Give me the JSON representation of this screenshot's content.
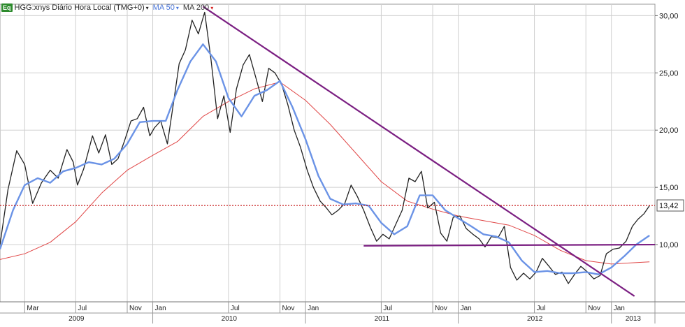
{
  "legend": {
    "badge": "Eq",
    "symbol": "HGG:xnys Diário Hora Local (TMG+0)",
    "ma50_label": "MA 50",
    "ma200_label": "MA 200",
    "caret": "▾"
  },
  "colors": {
    "price": "#222222",
    "ma50": "#6b93e6",
    "ma200": "#e04646",
    "trendline": "#7b1f82",
    "last_price_line": "#c00000",
    "grid": "#cfcfcf"
  },
  "chart_data": {
    "type": "line",
    "title": "HGG:xnys Diário Hora Local (TMG+0)",
    "xlabel": "",
    "ylabel": "",
    "ylim": [
      5.0,
      31.0
    ],
    "y_ticks": [
      "10,00",
      "15,00",
      "20,00",
      "25,00",
      "30,00"
    ],
    "y_tick_values": [
      10,
      15,
      20,
      25,
      30
    ],
    "x_range": [
      "2009-01-01",
      "2013-04-15"
    ],
    "month_ticks": [
      {
        "label": "Mar",
        "date": "2009-03-01"
      },
      {
        "label": "Jul",
        "date": "2009-07-01"
      },
      {
        "label": "Nov",
        "date": "2009-11-01"
      },
      {
        "label": "Jan",
        "date": "2010-01-01"
      },
      {
        "label": "Jul",
        "date": "2010-07-01"
      },
      {
        "label": "Nov",
        "date": "2010-11-01"
      },
      {
        "label": "Jan",
        "date": "2011-01-01"
      },
      {
        "label": "Jul",
        "date": "2011-07-01"
      },
      {
        "label": "Nov",
        "date": "2011-11-01"
      },
      {
        "label": "Jan",
        "date": "2012-01-01"
      },
      {
        "label": "Jul",
        "date": "2012-07-01"
      },
      {
        "label": "Nov",
        "date": "2012-11-01"
      },
      {
        "label": "Jan",
        "date": "2013-01-01"
      }
    ],
    "year_ticks": [
      {
        "label": "2009",
        "date": "2009-01-01"
      },
      {
        "label": "2010",
        "date": "2010-01-01"
      },
      {
        "label": "2011",
        "date": "2011-01-01"
      },
      {
        "label": "2012",
        "date": "2012-01-01"
      },
      {
        "label": "2013",
        "date": "2013-01-01"
      }
    ],
    "last_price": {
      "value": 13.42,
      "label": "13,42"
    },
    "series": [
      {
        "role": "price",
        "points": [
          [
            "2009-01-01",
            10.0
          ],
          [
            "2009-01-20",
            14.8
          ],
          [
            "2009-02-10",
            18.2
          ],
          [
            "2009-03-01",
            17.0
          ],
          [
            "2009-03-20",
            13.6
          ],
          [
            "2009-04-10",
            15.4
          ],
          [
            "2009-05-01",
            16.5
          ],
          [
            "2009-05-20",
            15.8
          ],
          [
            "2009-06-10",
            18.3
          ],
          [
            "2009-06-25",
            17.2
          ],
          [
            "2009-07-05",
            15.2
          ],
          [
            "2009-07-20",
            16.6
          ],
          [
            "2009-08-10",
            19.5
          ],
          [
            "2009-08-25",
            18.0
          ],
          [
            "2009-09-10",
            19.6
          ],
          [
            "2009-09-25",
            17.0
          ],
          [
            "2009-10-10",
            17.5
          ],
          [
            "2009-10-25",
            19.0
          ],
          [
            "2009-11-10",
            20.8
          ],
          [
            "2009-11-25",
            21.0
          ],
          [
            "2009-12-10",
            22.0
          ],
          [
            "2009-12-25",
            19.5
          ],
          [
            "2010-01-05",
            20.2
          ],
          [
            "2010-01-20",
            20.8
          ],
          [
            "2010-02-05",
            18.8
          ],
          [
            "2010-02-20",
            22.5
          ],
          [
            "2010-03-05",
            25.8
          ],
          [
            "2010-03-20",
            27.0
          ],
          [
            "2010-04-05",
            29.6
          ],
          [
            "2010-04-20",
            28.4
          ],
          [
            "2010-05-05",
            30.3
          ],
          [
            "2010-05-20",
            26.2
          ],
          [
            "2010-06-05",
            21.0
          ],
          [
            "2010-06-20",
            23.0
          ],
          [
            "2010-07-05",
            19.8
          ],
          [
            "2010-07-20",
            23.6
          ],
          [
            "2010-08-05",
            25.7
          ],
          [
            "2010-08-20",
            26.6
          ],
          [
            "2010-09-05",
            24.5
          ],
          [
            "2010-09-20",
            22.5
          ],
          [
            "2010-10-05",
            25.4
          ],
          [
            "2010-10-20",
            25.0
          ],
          [
            "2010-11-05",
            24.0
          ],
          [
            "2010-11-20",
            22.2
          ],
          [
            "2010-12-05",
            20.0
          ],
          [
            "2010-12-20",
            18.5
          ],
          [
            "2011-01-05",
            16.5
          ],
          [
            "2011-01-20",
            15.0
          ],
          [
            "2011-02-05",
            13.8
          ],
          [
            "2011-02-20",
            13.2
          ],
          [
            "2011-03-05",
            12.6
          ],
          [
            "2011-03-20",
            13.0
          ],
          [
            "2011-04-05",
            13.6
          ],
          [
            "2011-04-20",
            15.2
          ],
          [
            "2011-05-05",
            14.2
          ],
          [
            "2011-05-20",
            13.0
          ],
          [
            "2011-06-05",
            11.5
          ],
          [
            "2011-06-20",
            10.3
          ],
          [
            "2011-07-05",
            10.9
          ],
          [
            "2011-07-20",
            10.5
          ],
          [
            "2011-08-05",
            11.8
          ],
          [
            "2011-08-20",
            13.0
          ],
          [
            "2011-09-05",
            15.8
          ],
          [
            "2011-09-20",
            15.5
          ],
          [
            "2011-10-05",
            16.4
          ],
          [
            "2011-10-20",
            13.2
          ],
          [
            "2011-11-05",
            13.7
          ],
          [
            "2011-11-20",
            11.0
          ],
          [
            "2011-12-05",
            10.3
          ],
          [
            "2011-12-20",
            12.4
          ],
          [
            "2012-01-05",
            12.5
          ],
          [
            "2012-01-20",
            11.4
          ],
          [
            "2012-02-05",
            10.9
          ],
          [
            "2012-02-20",
            10.5
          ],
          [
            "2012-03-05",
            9.8
          ],
          [
            "2012-03-20",
            10.7
          ],
          [
            "2012-04-05",
            10.6
          ],
          [
            "2012-04-20",
            11.6
          ],
          [
            "2012-05-05",
            8.0
          ],
          [
            "2012-05-20",
            6.9
          ],
          [
            "2012-06-05",
            7.5
          ],
          [
            "2012-06-20",
            7.0
          ],
          [
            "2012-07-05",
            7.6
          ],
          [
            "2012-07-20",
            8.8
          ],
          [
            "2012-08-05",
            8.1
          ],
          [
            "2012-08-20",
            7.4
          ],
          [
            "2012-09-05",
            7.6
          ],
          [
            "2012-09-20",
            6.6
          ],
          [
            "2012-10-05",
            7.4
          ],
          [
            "2012-10-20",
            8.1
          ],
          [
            "2012-11-05",
            7.6
          ],
          [
            "2012-11-20",
            7.0
          ],
          [
            "2012-12-05",
            7.3
          ],
          [
            "2012-12-20",
            9.2
          ],
          [
            "2013-01-05",
            9.6
          ],
          [
            "2013-01-20",
            9.7
          ],
          [
            "2013-02-05",
            10.3
          ],
          [
            "2013-02-20",
            11.6
          ],
          [
            "2013-03-05",
            12.2
          ],
          [
            "2013-03-20",
            12.7
          ],
          [
            "2013-04-02",
            13.4
          ]
        ]
      },
      {
        "role": "ma50",
        "name": "MA 50",
        "points": [
          [
            "2009-01-01",
            9.6
          ],
          [
            "2009-02-01",
            13.0
          ],
          [
            "2009-03-01",
            15.2
          ],
          [
            "2009-04-01",
            15.8
          ],
          [
            "2009-05-01",
            15.4
          ],
          [
            "2009-06-01",
            16.4
          ],
          [
            "2009-07-01",
            16.7
          ],
          [
            "2009-08-01",
            17.2
          ],
          [
            "2009-09-01",
            17.0
          ],
          [
            "2009-10-01",
            17.5
          ],
          [
            "2009-11-01",
            18.8
          ],
          [
            "2009-12-01",
            20.7
          ],
          [
            "2010-01-01",
            20.8
          ],
          [
            "2010-02-01",
            20.8
          ],
          [
            "2010-03-01",
            23.5
          ],
          [
            "2010-04-01",
            26.0
          ],
          [
            "2010-05-01",
            27.5
          ],
          [
            "2010-06-01",
            26.0
          ],
          [
            "2010-07-01",
            22.8
          ],
          [
            "2010-08-01",
            21.2
          ],
          [
            "2010-09-01",
            23.0
          ],
          [
            "2010-10-01",
            23.5
          ],
          [
            "2010-11-01",
            24.3
          ],
          [
            "2010-12-01",
            22.0
          ],
          [
            "2011-01-01",
            19.2
          ],
          [
            "2011-02-01",
            16.0
          ],
          [
            "2011-03-01",
            14.0
          ],
          [
            "2011-04-01",
            13.5
          ],
          [
            "2011-05-01",
            13.6
          ],
          [
            "2011-06-01",
            13.4
          ],
          [
            "2011-07-01",
            11.9
          ],
          [
            "2011-08-01",
            10.9
          ],
          [
            "2011-09-01",
            11.6
          ],
          [
            "2011-10-01",
            14.3
          ],
          [
            "2011-11-01",
            14.3
          ],
          [
            "2011-12-01",
            13.0
          ],
          [
            "2012-01-01",
            12.3
          ],
          [
            "2012-02-01",
            11.6
          ],
          [
            "2012-03-01",
            10.9
          ],
          [
            "2012-04-01",
            10.7
          ],
          [
            "2012-05-01",
            10.2
          ],
          [
            "2012-06-01",
            8.6
          ],
          [
            "2012-07-01",
            7.6
          ],
          [
            "2012-08-01",
            7.7
          ],
          [
            "2012-09-01",
            7.5
          ],
          [
            "2012-10-01",
            7.5
          ],
          [
            "2012-11-01",
            7.6
          ],
          [
            "2012-12-01",
            7.4
          ],
          [
            "2013-01-01",
            8.0
          ],
          [
            "2013-02-01",
            9.0
          ],
          [
            "2013-03-01",
            10.0
          ],
          [
            "2013-04-02",
            10.8
          ]
        ]
      },
      {
        "role": "ma200",
        "name": "MA 200",
        "points": [
          [
            "2009-01-01",
            8.7
          ],
          [
            "2009-03-01",
            9.2
          ],
          [
            "2009-05-01",
            10.2
          ],
          [
            "2009-07-01",
            12.0
          ],
          [
            "2009-09-01",
            14.5
          ],
          [
            "2009-11-01",
            16.5
          ],
          [
            "2010-01-01",
            17.8
          ],
          [
            "2010-03-01",
            19.0
          ],
          [
            "2010-05-01",
            21.2
          ],
          [
            "2010-07-01",
            22.5
          ],
          [
            "2010-09-01",
            23.6
          ],
          [
            "2010-11-01",
            24.2
          ],
          [
            "2011-01-01",
            22.6
          ],
          [
            "2011-03-01",
            20.5
          ],
          [
            "2011-05-01",
            18.0
          ],
          [
            "2011-07-01",
            15.5
          ],
          [
            "2011-09-01",
            13.8
          ],
          [
            "2011-11-01",
            13.1
          ],
          [
            "2012-01-01",
            12.5
          ],
          [
            "2012-03-01",
            12.1
          ],
          [
            "2012-05-01",
            11.7
          ],
          [
            "2012-07-01",
            10.8
          ],
          [
            "2012-09-01",
            9.5
          ],
          [
            "2012-11-01",
            8.6
          ],
          [
            "2013-01-01",
            8.3
          ],
          [
            "2013-04-02",
            8.5
          ]
        ]
      }
    ],
    "trendlines": [
      {
        "role": "downtrend",
        "from": [
          "2010-05-01",
          30.8
        ],
        "to": [
          "2013-02-25",
          5.5
        ]
      },
      {
        "role": "support",
        "from": [
          "2011-05-20",
          9.9
        ],
        "to": [
          "2013-04-15",
          10.0
        ]
      }
    ]
  }
}
